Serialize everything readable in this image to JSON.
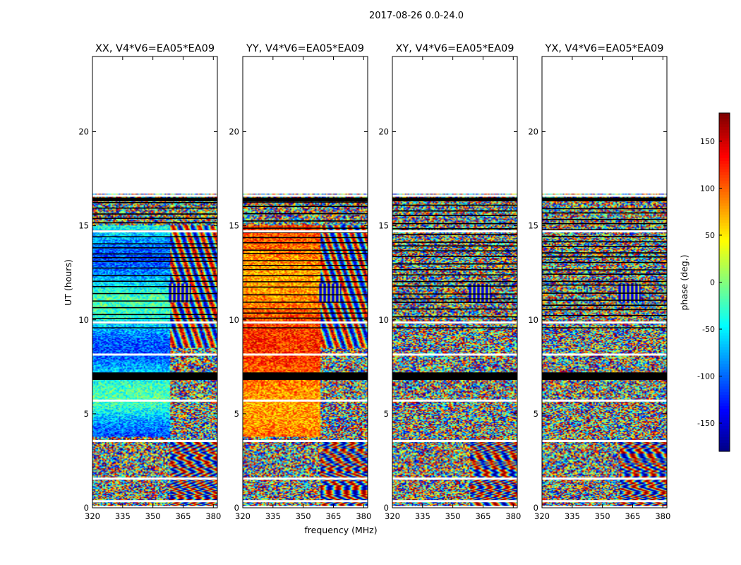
{
  "figure": {
    "suptitle": "2017-08-26 0.0-24.0",
    "xlabel": "frequency (MHz)",
    "ylabel": "UT (hours)"
  },
  "chart_data": {
    "type": "heatmap",
    "x": {
      "range": [
        320,
        382
      ],
      "ticks": [
        320,
        335,
        350,
        365,
        380
      ]
    },
    "y": {
      "range": [
        0,
        24
      ],
      "ticks": [
        0,
        5,
        10,
        15,
        20
      ]
    },
    "colorbar": {
      "label": "phase (deg.)",
      "range": [
        -180,
        180
      ],
      "ticks": [
        -150,
        -100,
        -50,
        0,
        50,
        100,
        150
      ],
      "colormap": "jet"
    },
    "panels": [
      {
        "title": "XX, V4*V6=EA05*EA09",
        "mode": "xx",
        "seed": 11
      },
      {
        "title": "YY, V4*V6=EA05*EA09",
        "mode": "yy",
        "seed": 23
      },
      {
        "title": "XY, V4*V6=EA05*EA09",
        "mode": "xy",
        "seed": 37
      },
      {
        "title": "YX, V4*V6=EA05*EA09",
        "mode": "yx",
        "seed": 51
      }
    ],
    "data_coverage_ut_hours": [
      0.1,
      16.7
    ],
    "flagged_black_ut_hours": [
      [
        6.8,
        7.2
      ],
      [
        16.3,
        16.5
      ]
    ],
    "blank_gap_ut_hours": [
      0.35,
      1.55,
      3.55,
      5.7,
      8.15,
      9.85,
      14.7,
      16.6
    ]
  }
}
